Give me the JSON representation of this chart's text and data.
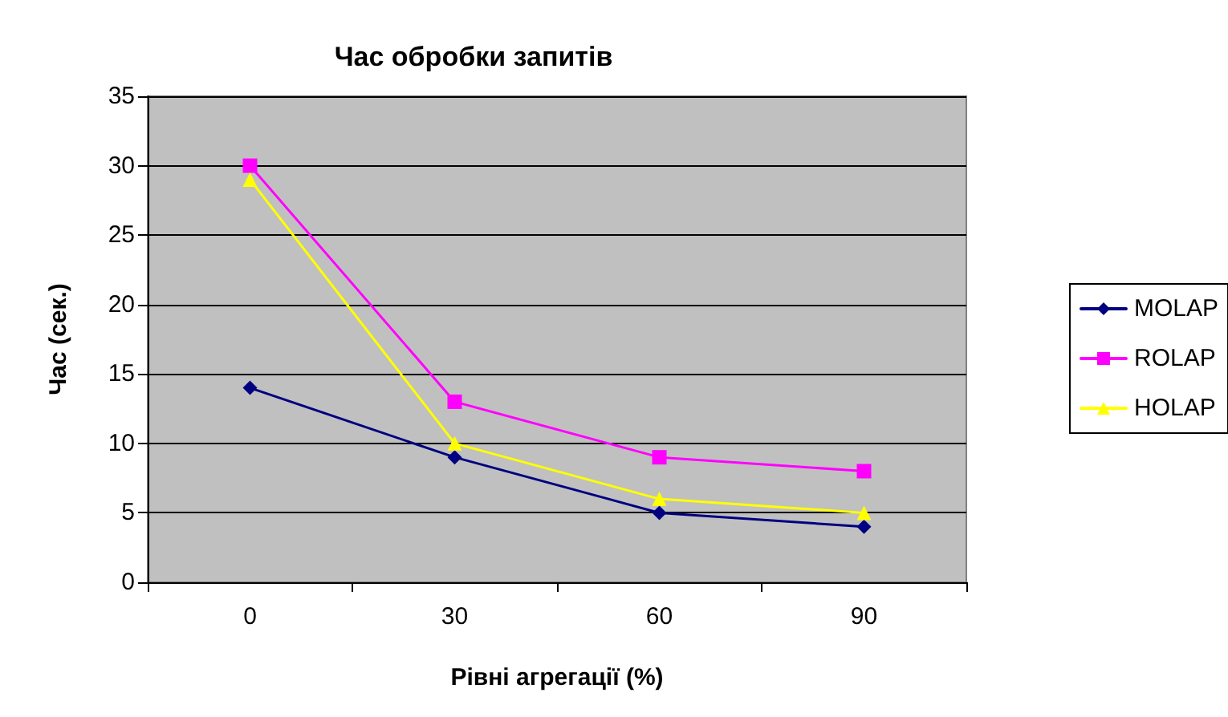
{
  "chart_data": {
    "type": "line",
    "title": "Час обробки запитів",
    "xlabel": "Рівні агрегації (%)",
    "ylabel": "Час (сек.)",
    "categories": [
      "0",
      "30",
      "60",
      "90"
    ],
    "series": [
      {
        "name": "MOLAP",
        "color": "#000080",
        "marker": "diamond",
        "values": [
          14,
          9,
          5,
          4
        ]
      },
      {
        "name": "ROLAP",
        "color": "#ff00ff",
        "marker": "square",
        "values": [
          30,
          13,
          9,
          8
        ]
      },
      {
        "name": "HOLAP",
        "color": "#ffff00",
        "marker": "triangle",
        "values": [
          29,
          10,
          6,
          5
        ]
      }
    ],
    "ylim": [
      0,
      35
    ],
    "yticks": [
      0,
      5,
      10,
      15,
      20,
      25,
      30,
      35
    ],
    "grid": "y",
    "legend": "right",
    "line_style": "solid"
  }
}
